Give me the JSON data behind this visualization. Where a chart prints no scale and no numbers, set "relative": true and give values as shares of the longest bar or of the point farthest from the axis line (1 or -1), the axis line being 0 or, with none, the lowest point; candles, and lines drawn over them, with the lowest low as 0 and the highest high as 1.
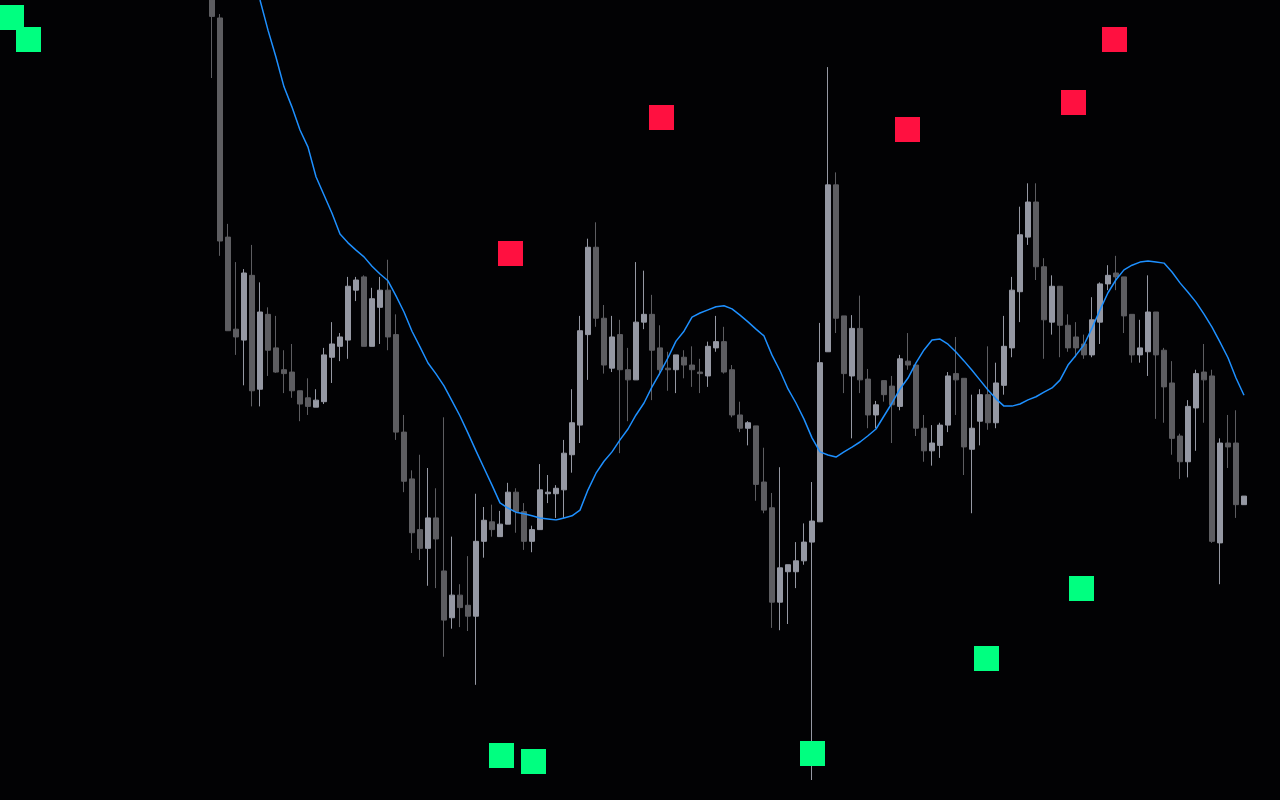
{
  "chart_data": [
    {
      "type": "candlestick",
      "relative": true,
      "tick_labels": false,
      "categories": [
        null,
        null,
        null,
        null,
        null,
        null,
        null,
        null,
        null,
        null,
        null,
        null,
        null,
        null,
        null,
        null,
        null,
        null,
        null,
        null,
        null,
        null,
        null,
        null,
        null,
        null,
        null,
        null,
        null,
        null,
        null,
        null,
        null,
        null,
        null,
        null,
        null,
        null,
        null,
        null,
        null,
        null,
        null,
        null,
        null,
        null,
        null,
        null,
        null,
        null,
        null,
        null,
        null,
        null,
        null,
        null,
        null,
        null,
        null,
        null,
        null,
        null,
        null,
        null,
        null,
        null,
        null,
        null,
        null,
        null,
        null,
        null,
        null,
        null,
        null,
        null,
        null,
        null,
        null,
        null,
        null,
        null,
        null,
        null,
        null,
        null,
        null,
        null,
        null,
        null,
        null,
        null,
        null,
        null,
        null,
        null,
        null,
        null,
        null,
        null,
        null,
        null,
        null,
        null,
        null,
        null,
        null,
        null,
        null,
        null,
        null,
        null,
        null,
        null,
        null,
        null,
        null,
        null,
        null,
        null,
        null,
        null,
        null,
        null,
        null,
        null,
        null,
        null,
        null,
        null
      ],
      "colors": [
        "#5d5d61",
        "#5d5d61",
        "#5d5d61",
        "#5d5d61",
        "#9598a3",
        "#5d5d61",
        "#9598a3",
        "#5d5d61",
        "#5d5d61",
        "#5d5d61",
        "#5d5d61",
        "#5d5d61",
        "#5d5d61",
        "#9598a3",
        "#9598a3",
        "#9598a3",
        "#9598a3",
        "#9598a3",
        "#9598a3",
        "#5d5d61",
        "#9598a3",
        "#9598a3",
        "#5d5d61",
        "#5d5d61",
        "#5d5d61",
        "#5d5d61",
        "#5d5d61",
        "#9598a3",
        "#5d5d61",
        "#5d5d61",
        "#9598a3",
        "#5d5d61",
        "#5d5d61",
        "#9598a3",
        "#9598a3",
        "#5d5d61",
        "#9598a3",
        "#9598a3",
        "#5d5d61",
        "#5d5d61",
        "#9598a3",
        "#9598a3",
        "#9598a3",
        "#9598a3",
        "#9598a3",
        "#9598a3",
        "#9598a3",
        "#9598a3",
        "#5d5d61",
        "#5d5d61",
        "#9598a3",
        "#5d5d61",
        "#5d5d61",
        "#9598a3",
        "#9598a3",
        "#5d5d61",
        "#5d5d61",
        "#5d5d61",
        "#9598a3",
        "#5d5d61",
        "#5d5d61",
        "#5d5d61",
        "#9598a3",
        "#9598a3",
        "#5d5d61",
        "#5d5d61",
        "#5d5d61",
        "#9598a3",
        "#5d5d61",
        "#5d5d61",
        "#5d5d61",
        "#9598a3",
        "#9598a3",
        "#9598a3",
        "#9598a3",
        "#9598a3",
        "#9598a3",
        "#9598a3",
        "#5d5d61",
        "#5d5d61",
        "#9598a3",
        "#5d5d61",
        "#5d5d61",
        "#9598a3",
        "#5d5d61",
        "#5d5d61",
        "#9598a3",
        "#5d5d61",
        "#5d5d61",
        "#5d5d61",
        "#9598a3",
        "#9598a3",
        "#9598a3",
        "#5d5d61",
        "#5d5d61",
        "#9598a3",
        "#9598a3",
        "#5d5d61",
        "#9598a3",
        "#9598a3",
        "#9598a3",
        "#9598a3",
        "#9598a3",
        "#5d5d61",
        "#5d5d61",
        "#9598a3",
        "#5d5d61",
        "#5d5d61",
        "#5d5d61",
        "#5d5d61",
        "#9598a3",
        "#9598a3",
        "#9598a3",
        "#5d5d61",
        "#5d5d61",
        "#5d5d61",
        "#9598a3",
        "#9598a3",
        "#5d5d61",
        "#5d5d61",
        "#5d5d61",
        "#5d5d61",
        "#9598a3",
        "#9598a3",
        "#5d5d61",
        "#5d5d61",
        "#9598a3",
        "#5d5d61",
        "#5d5d61",
        "#9598a3"
      ],
      "ohlc": [
        [
          1,
          1,
          0.9,
          0.979
        ],
        [
          0.977,
          0.982,
          0.672,
          0.691
        ],
        [
          0.696,
          0.713,
          0.576,
          0.576
        ],
        [
          0.578,
          0.664,
          0.545,
          0.568
        ],
        [
          0.564,
          0.655,
          0.506,
          0.65
        ],
        [
          0.647,
          0.686,
          0.479,
          0.499
        ],
        [
          0.501,
          0.638,
          0.479,
          0.6
        ],
        [
          0.597,
          0.606,
          0.518,
          0.551
        ],
        [
          0.554,
          0.595,
          0.522,
          0.523
        ],
        [
          0.526,
          0.551,
          0.496,
          0.521
        ],
        [
          0.523,
          0.559,
          0.49,
          0.499
        ],
        [
          0.499,
          0.499,
          0.46,
          0.482
        ],
        [
          0.49,
          0.515,
          0.468,
          0.479
        ],
        [
          0.478,
          0.501,
          0.478,
          0.487
        ],
        [
          0.485,
          0.554,
          0.482,
          0.545
        ],
        [
          0.542,
          0.587,
          0.509,
          0.559
        ],
        [
          0.556,
          0.573,
          0.537,
          0.568
        ],
        [
          0.564,
          0.645,
          0.54,
          0.633
        ],
        [
          0.628,
          0.645,
          0.614,
          0.641
        ],
        [
          0.645,
          0.647,
          0.556,
          0.556
        ],
        [
          0.556,
          0.631,
          0.556,
          0.617
        ],
        [
          0.606,
          0.645,
          0.559,
          0.628
        ],
        [
          0.628,
          0.667,
          0.551,
          0.568
        ],
        [
          0.571,
          0.597,
          0.436,
          0.446
        ],
        [
          0.446,
          0.468,
          0.369,
          0.383
        ],
        [
          0.386,
          0.397,
          0.291,
          0.317
        ],
        [
          0.321,
          0.417,
          0.282,
          0.297
        ],
        [
          0.297,
          0.4,
          0.249,
          0.336
        ],
        [
          0.336,
          0.374,
          0.246,
          0.309
        ],
        [
          0.268,
          0.465,
          0.158,
          0.205
        ],
        [
          0.208,
          0.312,
          0.194,
          0.237
        ],
        [
          0.237,
          0.251,
          0.196,
          0.221
        ],
        [
          0.224,
          0.287,
          0.191,
          0.21
        ],
        [
          0.21,
          0.367,
          0.122,
          0.306
        ],
        [
          0.306,
          0.35,
          0.285,
          0.333
        ],
        [
          0.331,
          0.353,
          0.312,
          0.321
        ],
        [
          0.312,
          0.345,
          0.312,
          0.328
        ],
        [
          0.328,
          0.381,
          0.328,
          0.369
        ],
        [
          0.369,
          0.374,
          0.317,
          0.344
        ],
        [
          0.344,
          0.355,
          0.295,
          0.306
        ],
        [
          0.306,
          0.326,
          0.292,
          0.321
        ],
        [
          0.321,
          0.405,
          0.321,
          0.372
        ],
        [
          0.367,
          0.391,
          0.355,
          0.369
        ],
        [
          0.367,
          0.378,
          0.336,
          0.374
        ],
        [
          0.372,
          0.436,
          0.336,
          0.419
        ],
        [
          0.417,
          0.501,
          0.394,
          0.458
        ],
        [
          0.455,
          0.595,
          0.432,
          0.576
        ],
        [
          0.571,
          0.694,
          0.513,
          0.683
        ],
        [
          0.683,
          0.715,
          0.581,
          0.592
        ],
        [
          0.592,
          0.609,
          0.521,
          0.532
        ],
        [
          0.528,
          0.595,
          0.523,
          0.568
        ],
        [
          0.571,
          0.59,
          0.419,
          0.526
        ],
        [
          0.526,
          0.554,
          0.46,
          0.513
        ],
        [
          0.513,
          0.664,
          0.513,
          0.587
        ],
        [
          0.587,
          0.653,
          0.578,
          0.597
        ],
        [
          0.597,
          0.622,
          0.487,
          0.551
        ],
        [
          0.554,
          0.583,
          0.519,
          0.526
        ],
        [
          0.528,
          0.549,
          0.499,
          0.526
        ],
        [
          0.526,
          0.545,
          0.496,
          0.545
        ],
        [
          0.542,
          0.551,
          0.515,
          0.532
        ],
        [
          0.532,
          0.556,
          0.504,
          0.526
        ],
        [
          0.523,
          0.54,
          0.496,
          0.521
        ],
        [
          0.518,
          0.562,
          0.504,
          0.556
        ],
        [
          0.554,
          0.595,
          0.549,
          0.562
        ],
        [
          0.562,
          0.581,
          0.521,
          0.523
        ],
        [
          0.526,
          0.532,
          0.465,
          0.468
        ],
        [
          0.468,
          0.485,
          0.446,
          0.451
        ],
        [
          0.451,
          0.46,
          0.429,
          0.458
        ],
        [
          0.454,
          0.454,
          0.358,
          0.379
        ],
        [
          0.382,
          0.426,
          0.342,
          0.346
        ],
        [
          0.349,
          0.368,
          0.195,
          0.228
        ],
        [
          0.228,
          0.401,
          0.192,
          0.272
        ],
        [
          0.267,
          0.276,
          0.2,
          0.276
        ],
        [
          0.267,
          0.305,
          0.246,
          0.281
        ],
        [
          0.281,
          0.329,
          0.276,
          0.305
        ],
        [
          0.305,
          0.382,
          0,
          0.332
        ],
        [
          0.331,
          0.586,
          0.331,
          0.535
        ],
        [
          0.549,
          0.914,
          0.549,
          0.763
        ],
        [
          0.763,
          0.779,
          0.573,
          0.592
        ],
        [
          0.595,
          0.595,
          0.496,
          0.521
        ],
        [
          0.518,
          0.596,
          0.438,
          0.579
        ],
        [
          0.579,
          0.621,
          0.496,
          0.513
        ],
        [
          0.514,
          0.527,
          0.451,
          0.468
        ],
        [
          0.468,
          0.486,
          0.451,
          0.481
        ],
        [
          0.512,
          0.512,
          0.485,
          0.494
        ],
        [
          0.505,
          0.518,
          0.432,
          0.481
        ],
        [
          0.479,
          0.545,
          0.474,
          0.54
        ],
        [
          0.537,
          0.573,
          0.526,
          0.532
        ],
        [
          0.532,
          0.532,
          0.441,
          0.451
        ],
        [
          0.451,
          0.468,
          0.408,
          0.422
        ],
        [
          0.422,
          0.455,
          0.403,
          0.432
        ],
        [
          0.429,
          0.458,
          0.413,
          0.455
        ],
        [
          0.455,
          0.523,
          0.446,
          0.518
        ],
        [
          0.521,
          0.568,
          0.468,
          0.513
        ],
        [
          0.515,
          0.515,
          0.391,
          0.427
        ],
        [
          0.424,
          0.494,
          0.342,
          0.451
        ],
        [
          0.46,
          0.501,
          0.429,
          0.494
        ],
        [
          0.494,
          0.556,
          0.449,
          0.458
        ],
        [
          0.458,
          0.535,
          0.451,
          0.509
        ],
        [
          0.506,
          0.595,
          0.494,
          0.556
        ],
        [
          0.554,
          0.645,
          0.542,
          0.628
        ],
        [
          0.626,
          0.735,
          0.587,
          0.699
        ],
        [
          0.696,
          0.765,
          0.686,
          0.741
        ],
        [
          0.741,
          0.765,
          0.641,
          0.658
        ],
        [
          0.658,
          0.669,
          0.54,
          0.59
        ],
        [
          0.587,
          0.647,
          0.571,
          0.633
        ],
        [
          0.633,
          0.633,
          0.542,
          0.583
        ],
        [
          0.583,
          0.597,
          0.549,
          0.554
        ],
        [
          0.568,
          0.587,
          0.542,
          0.554
        ],
        [
          0.559,
          0.571,
          0.54,
          0.545
        ],
        [
          0.545,
          0.619,
          0.542,
          0.59
        ],
        [
          0.587,
          0.638,
          0.559,
          0.636
        ],
        [
          0.636,
          0.66,
          0.628,
          0.647
        ],
        [
          0.65,
          0.672,
          0.628,
          0.645
        ],
        [
          0.645,
          0.645,
          0.573,
          0.595
        ],
        [
          0.597,
          0.597,
          0.535,
          0.545
        ],
        [
          0.545,
          0.59,
          0.535,
          0.554
        ],
        [
          0.549,
          0.647,
          0.518,
          0.6
        ],
        [
          0.6,
          0.6,
          0.463,
          0.545
        ],
        [
          0.551,
          0.554,
          0.458,
          0.504
        ],
        [
          0.509,
          0.537,
          0.417,
          0.438
        ],
        [
          0.441,
          0.444,
          0.386,
          0.408
        ],
        [
          0.408,
          0.487,
          0.388,
          0.479
        ],
        [
          0.477,
          0.526,
          0.422,
          0.521
        ],
        [
          0.523,
          0.559,
          0.458,
          0.513
        ],
        [
          0.518,
          0.526,
          0.304,
          0.306
        ],
        [
          0.304,
          0.438,
          0.251,
          0.432
        ],
        [
          0.432,
          0.468,
          0.4,
          0.427
        ],
        [
          0.432,
          0.474,
          0.336,
          0.353
        ],
        [
          0.353,
          0.364,
          0.353,
          0.364
        ]
      ]
    },
    {
      "type": "line",
      "relative": true,
      "tick_labels": false,
      "color": "#1e90ff",
      "marker": "none",
      "line_style": "solid",
      "categories": [
        null,
        null,
        null,
        null,
        null,
        null,
        null,
        null,
        null,
        null,
        null,
        null,
        null,
        null,
        null,
        null,
        null,
        null,
        null,
        null,
        null,
        null,
        null,
        null,
        null,
        null,
        null,
        null,
        null,
        null,
        null,
        null,
        null,
        null,
        null,
        null,
        null,
        null,
        null,
        null,
        null,
        null,
        null,
        null,
        null,
        null,
        null,
        null,
        null,
        null,
        null,
        null,
        null,
        null,
        null,
        null,
        null,
        null,
        null,
        null,
        null,
        null,
        null,
        null,
        null,
        null,
        null,
        null,
        null,
        null,
        null,
        null,
        null,
        null,
        null,
        null,
        null,
        null,
        null,
        null,
        null,
        null,
        null,
        null,
        null,
        null,
        null,
        null,
        null,
        null,
        null,
        null,
        null,
        null,
        null,
        null,
        null,
        null,
        null,
        null,
        null,
        null,
        null,
        null,
        null,
        null,
        null,
        null,
        null,
        null,
        null,
        null,
        null,
        null,
        null,
        null,
        null,
        null,
        null,
        null,
        null,
        null,
        null,
        null
      ],
      "values": [
        1.0,
        0.942,
        0.89,
        0.833,
        0.794,
        0.75,
        0.717,
        0.66,
        0.625,
        0.59,
        0.55,
        0.533,
        0.519,
        0.506,
        0.488,
        0.473,
        0.46,
        0.431,
        0.4,
        0.363,
        0.333,
        0.302,
        0.281,
        0.258,
        0.229,
        0.2,
        0.167,
        0.133,
        0.1,
        0.067,
        0.033,
        0.023,
        0.015,
        0.012,
        0.008,
        0.004,
        0.002,
        0,
        0.004,
        0.008,
        0.019,
        0.058,
        0.09,
        0.113,
        0.131,
        0.154,
        0.175,
        0.202,
        0.225,
        0.256,
        0.283,
        0.312,
        0.344,
        0.363,
        0.39,
        0.398,
        0.404,
        0.41,
        0.412,
        0.406,
        0.394,
        0.381,
        0.367,
        0.354,
        0.317,
        0.287,
        0.252,
        0.225,
        0.194,
        0.158,
        0.131,
        0.125,
        0.121,
        0.131,
        0.14,
        0.15,
        0.162,
        0.175,
        0.2,
        0.225,
        0.252,
        0.273,
        0.302,
        0.327,
        0.346,
        0.348,
        0.338,
        0.323,
        0.306,
        0.288,
        0.269,
        0.25,
        0.233,
        0.219,
        0.219,
        0.223,
        0.231,
        0.237,
        0.246,
        0.254,
        0.269,
        0.298,
        0.317,
        0.337,
        0.369,
        0.404,
        0.437,
        0.462,
        0.481,
        0.49,
        0.496,
        0.498,
        0.496,
        0.494,
        0.477,
        0.456,
        0.438,
        0.419,
        0.396,
        0.371,
        0.342,
        0.312,
        0.273,
        0.24
      ]
    }
  ]
}
